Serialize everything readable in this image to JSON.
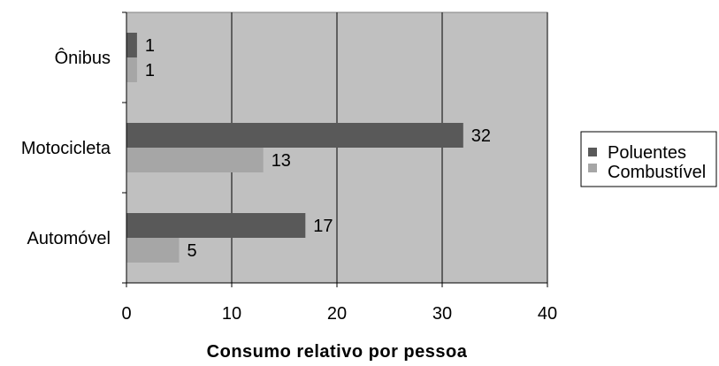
{
  "chart_data": {
    "type": "bar",
    "orientation": "horizontal",
    "categories": [
      "Ônibus",
      "Motocicleta",
      "Automóvel"
    ],
    "series": [
      {
        "name": "Poluentes",
        "values": [
          1,
          32,
          17
        ],
        "color": "#595959"
      },
      {
        "name": "Combustível",
        "values": [
          1,
          13,
          5
        ],
        "color": "#a6a6a6"
      }
    ],
    "xlabel": "Consumo relativo por pessoa",
    "ylabel": "",
    "xlim": [
      0,
      40
    ],
    "xticks": [
      "0",
      "10",
      "20",
      "30",
      "40"
    ],
    "grid": true,
    "legend": "right",
    "plot_background": "#c0c0c0"
  }
}
